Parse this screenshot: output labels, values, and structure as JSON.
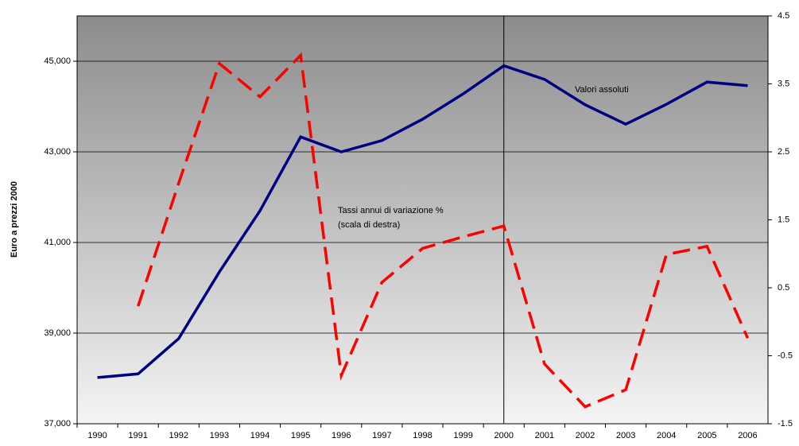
{
  "chart_data": {
    "type": "line",
    "y_label": "Euro a prezzi 2000",
    "annotations": [
      "Valori assoluti",
      "Tassi annui di variazione %",
      "(scala di destra)"
    ],
    "categories": [
      "1990",
      "1991",
      "1992",
      "1993",
      "1994",
      "1995",
      "1996",
      "1997",
      "1998",
      "1999",
      "2000",
      "2001",
      "2002",
      "2003",
      "2004",
      "2005",
      "2006"
    ],
    "series": [
      {
        "name": "Valori assoluti",
        "color": "#000080",
        "dashed": false,
        "values": [
          38020,
          38100,
          38880,
          40350,
          41700,
          43330,
          43000,
          43250,
          43720,
          44280,
          44900,
          44600,
          44040,
          43610,
          44050,
          44540,
          44460
        ]
      },
      {
        "name": "Tassi annui di variazione %",
        "color": "#ff0000",
        "dashed": true,
        "axis": "y2",
        "values": [
          null,
          0.23,
          2.04,
          3.8,
          3.31,
          3.92,
          -0.79,
          0.58,
          1.08,
          1.25,
          1.41,
          -0.62,
          -1.25,
          -1.0,
          0.99,
          1.11,
          -0.24
        ]
      }
    ],
    "ylim": [
      37000,
      46000
    ],
    "yticks": [
      {
        "value": 37000,
        "label": "37,000"
      },
      {
        "value": 39000,
        "label": "39,000"
      },
      {
        "value": 41000,
        "label": "41,000"
      },
      {
        "value": 43000,
        "label": "43,000"
      },
      {
        "value": 45000,
        "label": "45,000"
      }
    ],
    "y2lim": [
      -1.5,
      4.5
    ],
    "y2ticks": [
      -1.5,
      -0.5,
      0.5,
      1.5,
      2.5,
      3.5,
      4.5
    ],
    "grid": true,
    "vline_at": "2000"
  }
}
